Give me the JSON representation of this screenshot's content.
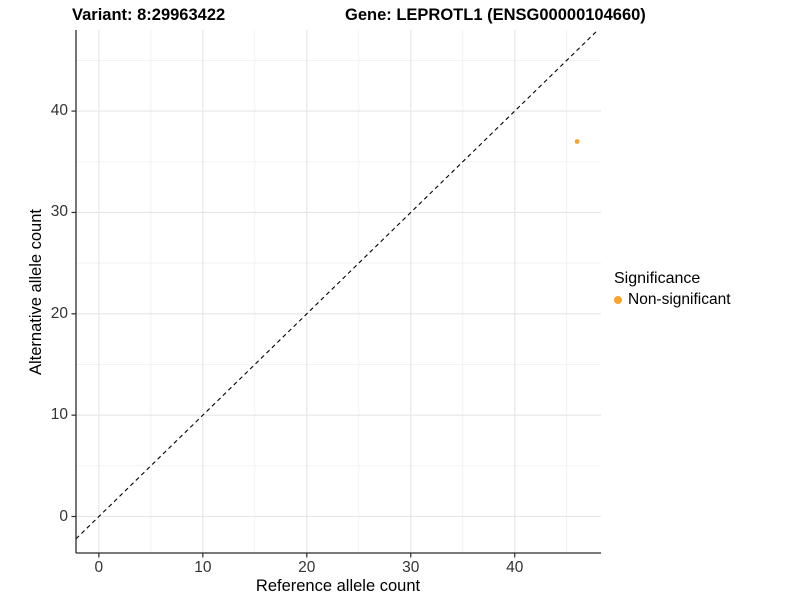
{
  "figure": {
    "title_left": "Variant: 8:29963422",
    "title_right": "Gene: LEPROTL1 (ENSG00000104660)"
  },
  "chart_data": {
    "type": "scatter",
    "titles": [
      "Variant: 8:29963422",
      "Gene: LEPROTL1 (ENSG00000104660)"
    ],
    "xlabel": "Reference allele count",
    "ylabel": "Alternative allele count",
    "xlim": [
      -2.2,
      48.3
    ],
    "ylim": [
      -3.6,
      48.0
    ],
    "x_ticks": [
      0,
      10,
      20,
      30,
      40
    ],
    "y_ticks": [
      0,
      10,
      20,
      30,
      40
    ],
    "x_minor_ticks": [
      5,
      15,
      25,
      35,
      45
    ],
    "y_minor_ticks": [
      5,
      15,
      25,
      35,
      45
    ],
    "grid": true,
    "series": [
      {
        "name": "Non-significant",
        "color": "#F8A42B",
        "points": [
          {
            "x": 46,
            "y": 37
          }
        ]
      }
    ],
    "reference_line": {
      "kind": "identity",
      "slope": 1,
      "intercept": 0,
      "linestyle": "dashed",
      "color": "#000000"
    },
    "legend": {
      "title": "Significance",
      "position": "right",
      "items": [
        {
          "label": "Non-significant",
          "color": "#F8A42B",
          "marker": "circle"
        }
      ]
    },
    "colors": {
      "background": "#FFFFFF",
      "grid_major": "#E6E6E6",
      "grid_minor": "#F1F1F1",
      "axis_line": "#2B2B2B",
      "tick_label": "#333333",
      "point": "#F8A42B"
    }
  }
}
